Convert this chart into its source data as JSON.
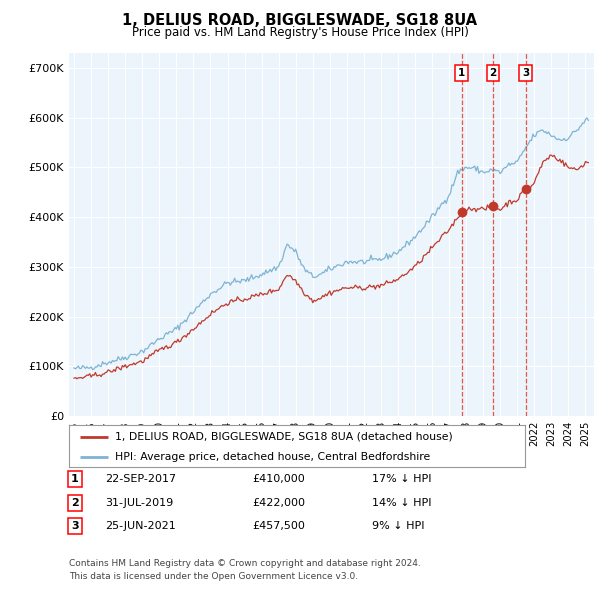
{
  "title": "1, DELIUS ROAD, BIGGLESWADE, SG18 8UA",
  "subtitle": "Price paid vs. HM Land Registry's House Price Index (HPI)",
  "legend_label_red": "1, DELIUS ROAD, BIGGLESWADE, SG18 8UA (detached house)",
  "legend_label_blue": "HPI: Average price, detached house, Central Bedfordshire",
  "footnote1": "Contains HM Land Registry data © Crown copyright and database right 2024.",
  "footnote2": "This data is licensed under the Open Government Licence v3.0.",
  "transactions": [
    {
      "label": "1",
      "date": "22-SEP-2017",
      "price": "£410,000",
      "hpi_diff": "17% ↓ HPI"
    },
    {
      "label": "2",
      "date": "31-JUL-2019",
      "price": "£422,000",
      "hpi_diff": "14% ↓ HPI"
    },
    {
      "label": "3",
      "date": "25-JUN-2021",
      "price": "£457,500",
      "hpi_diff": "9% ↓ HPI"
    }
  ],
  "sale_dates_num": [
    2017.727,
    2019.579,
    2021.486
  ],
  "sale_prices": [
    410000,
    422000,
    457500
  ],
  "ylim": [
    0,
    730000
  ],
  "yticks": [
    0,
    100000,
    200000,
    300000,
    400000,
    500000,
    600000,
    700000
  ],
  "ytick_labels": [
    "£0",
    "£100K",
    "£200K",
    "£300K",
    "£400K",
    "£500K",
    "£600K",
    "£700K"
  ],
  "xlim_left": 1994.7,
  "xlim_right": 2025.5,
  "color_red": "#C0392B",
  "color_blue": "#7FB3D3",
  "color_vline": "#E74C3C",
  "bg_color": "#EBF5FB",
  "grid_color": "#FFFFFF",
  "hpi_anchors": [
    [
      1995.0,
      95000
    ],
    [
      1996.0,
      98000
    ],
    [
      1997.0,
      108000
    ],
    [
      1998.0,
      118000
    ],
    [
      1999.0,
      130000
    ],
    [
      2000.0,
      155000
    ],
    [
      2001.0,
      175000
    ],
    [
      2002.0,
      210000
    ],
    [
      2003.0,
      245000
    ],
    [
      2004.0,
      268000
    ],
    [
      2005.0,
      272000
    ],
    [
      2006.0,
      285000
    ],
    [
      2007.0,
      300000
    ],
    [
      2007.5,
      345000
    ],
    [
      2008.0,
      330000
    ],
    [
      2008.5,
      295000
    ],
    [
      2009.0,
      280000
    ],
    [
      2009.5,
      285000
    ],
    [
      2010.0,
      295000
    ],
    [
      2011.0,
      310000
    ],
    [
      2012.0,
      310000
    ],
    [
      2013.0,
      315000
    ],
    [
      2014.0,
      330000
    ],
    [
      2015.0,
      360000
    ],
    [
      2016.0,
      400000
    ],
    [
      2017.0,
      445000
    ],
    [
      2017.5,
      490000
    ],
    [
      2018.0,
      500000
    ],
    [
      2018.5,
      498000
    ],
    [
      2019.0,
      490000
    ],
    [
      2019.5,
      495000
    ],
    [
      2020.0,
      490000
    ],
    [
      2020.5,
      505000
    ],
    [
      2021.0,
      510000
    ],
    [
      2021.5,
      540000
    ],
    [
      2022.0,
      565000
    ],
    [
      2022.5,
      575000
    ],
    [
      2023.0,
      565000
    ],
    [
      2023.5,
      555000
    ],
    [
      2024.0,
      560000
    ],
    [
      2024.5,
      575000
    ],
    [
      2025.0,
      595000
    ]
  ],
  "red_anchors": [
    [
      1995.0,
      75000
    ],
    [
      1996.0,
      80000
    ],
    [
      1997.0,
      88000
    ],
    [
      1998.0,
      100000
    ],
    [
      1999.0,
      110000
    ],
    [
      2000.0,
      132000
    ],
    [
      2001.0,
      148000
    ],
    [
      2002.0,
      175000
    ],
    [
      2003.0,
      205000
    ],
    [
      2004.0,
      228000
    ],
    [
      2005.0,
      235000
    ],
    [
      2006.0,
      245000
    ],
    [
      2007.0,
      255000
    ],
    [
      2007.5,
      285000
    ],
    [
      2008.0,
      272000
    ],
    [
      2008.5,
      248000
    ],
    [
      2009.0,
      232000
    ],
    [
      2009.5,
      238000
    ],
    [
      2010.0,
      248000
    ],
    [
      2011.0,
      258000
    ],
    [
      2012.0,
      258000
    ],
    [
      2013.0,
      262000
    ],
    [
      2014.0,
      275000
    ],
    [
      2015.0,
      300000
    ],
    [
      2016.0,
      338000
    ],
    [
      2017.0,
      375000
    ],
    [
      2017.727,
      410000
    ],
    [
      2018.0,
      415000
    ],
    [
      2018.5,
      418000
    ],
    [
      2019.0,
      415000
    ],
    [
      2019.579,
      422000
    ],
    [
      2020.0,
      415000
    ],
    [
      2020.5,
      430000
    ],
    [
      2021.0,
      435000
    ],
    [
      2021.486,
      457500
    ],
    [
      2021.8,
      460000
    ],
    [
      2022.0,
      470000
    ],
    [
      2022.5,
      510000
    ],
    [
      2023.0,
      525000
    ],
    [
      2023.5,
      515000
    ],
    [
      2024.0,
      500000
    ],
    [
      2024.5,
      495000
    ],
    [
      2025.0,
      510000
    ]
  ]
}
